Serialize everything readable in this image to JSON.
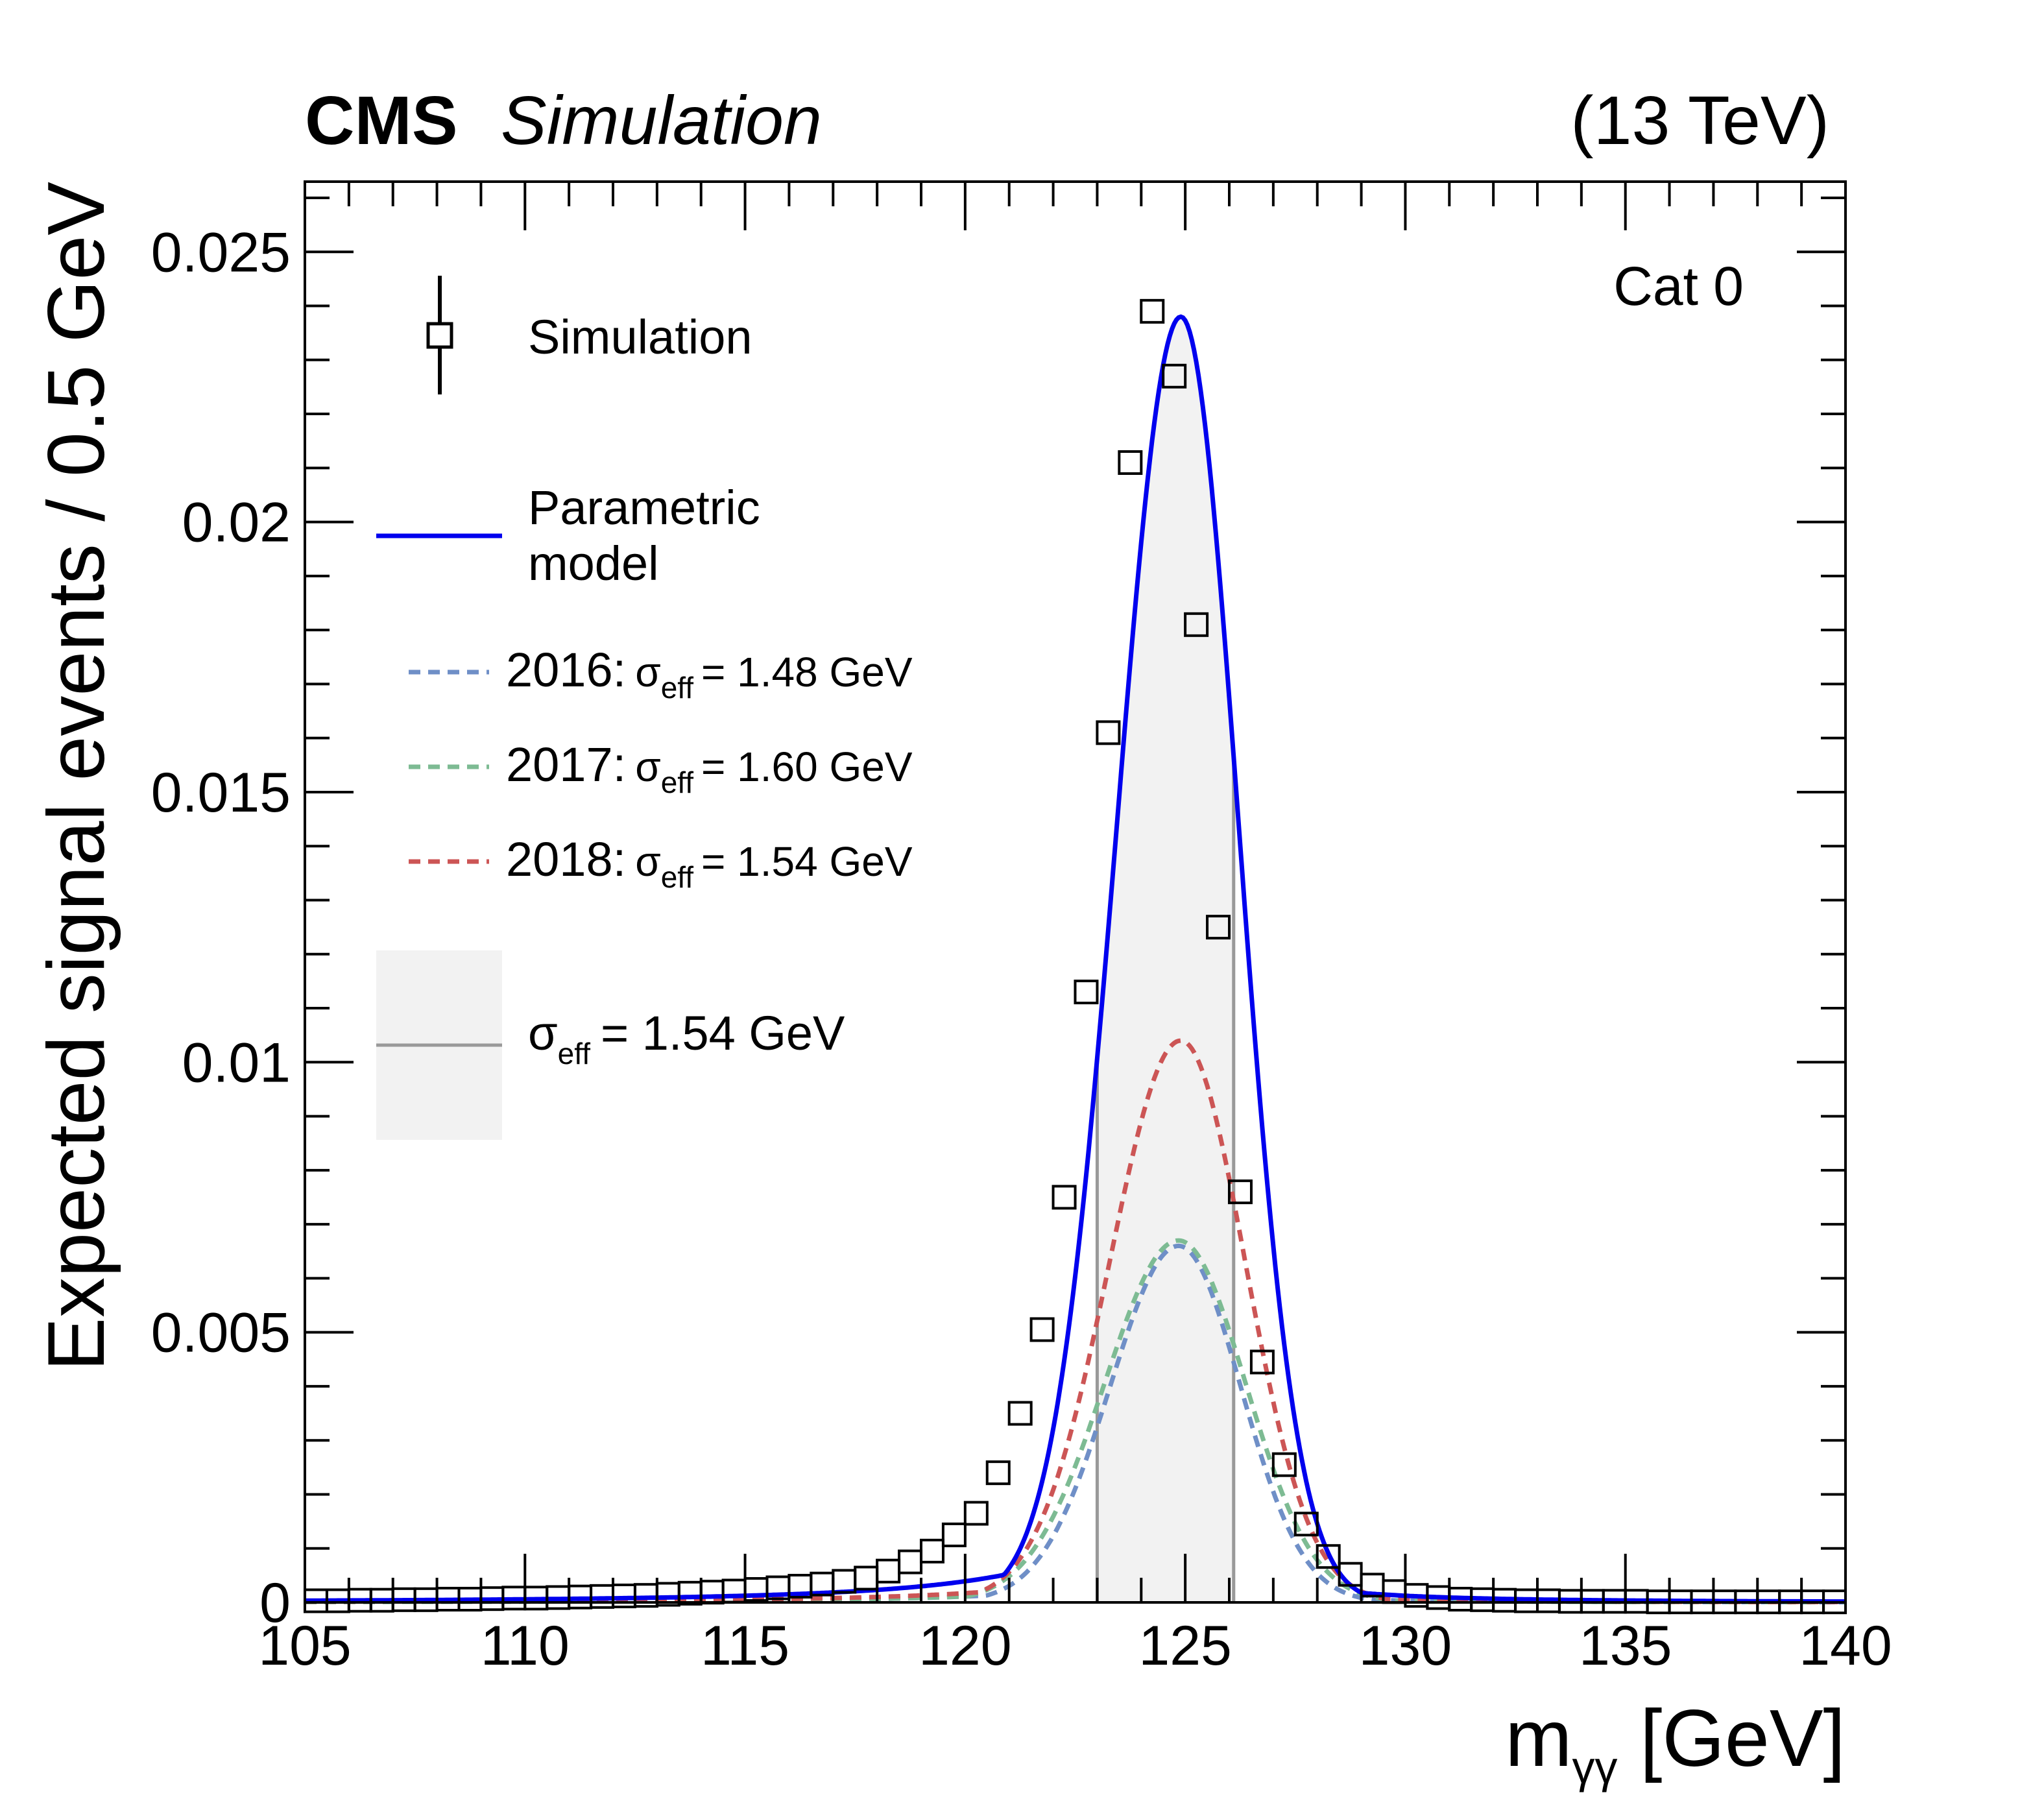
{
  "header": {
    "experiment": "CMS",
    "label": "Simulation",
    "energy": "(13 TeV)"
  },
  "category_label": "Cat 0",
  "colors": {
    "model": "#0000ee",
    "y2016": "#6f8fc7",
    "y2017": "#7dbb93",
    "y2018": "#cc5555",
    "band": "#f2f2f2",
    "band_edge": "#999999"
  },
  "legend": {
    "simulation": "Simulation",
    "model_line1": "Parametric",
    "model_line2": "model",
    "y2016_year": "2016:",
    "y2017_year": "2017:",
    "y2018_year": "2018:",
    "sigma_symbol": "σ",
    "sigma_sub": "eff",
    "y2016_value": "= 1.48 GeV",
    "y2017_value": "= 1.60 GeV",
    "y2018_value": "= 1.54 GeV",
    "total_value": "= 1.54 GeV"
  },
  "chart_data": {
    "type": "line",
    "title": "CMS Simulation (13 TeV)",
    "xlabel_main": "m",
    "xlabel_sub": "γγ",
    "xlabel_unit": "[GeV]",
    "ylabel": "Expected signal events / 0.5 GeV",
    "xlim": [
      105,
      140
    ],
    "ylim": [
      0,
      0.0263
    ],
    "x_ticks": [
      105,
      110,
      115,
      120,
      125,
      130,
      135,
      140
    ],
    "x_tick_labels": [
      "105",
      "110",
      "115",
      "120",
      "125",
      "130",
      "135",
      "140"
    ],
    "y_ticks": [
      0,
      0.005,
      0.01,
      0.015,
      0.02,
      0.025
    ],
    "y_tick_labels": [
      "0",
      "0.005",
      "0.01",
      "0.015",
      "0.02",
      "0.025"
    ],
    "sigma_eff_band": [
      123.0,
      126.1
    ],
    "simulation_points": {
      "x": [
        105.25,
        105.75,
        106.25,
        106.75,
        107.25,
        107.75,
        108.25,
        108.75,
        109.25,
        109.75,
        110.25,
        110.75,
        111.25,
        111.75,
        112.25,
        112.75,
        113.25,
        113.75,
        114.25,
        114.75,
        115.25,
        115.75,
        116.25,
        116.75,
        117.25,
        117.75,
        118.25,
        118.75,
        119.25,
        119.75,
        120.25,
        120.75,
        121.25,
        121.75,
        122.25,
        122.75,
        123.25,
        123.75,
        124.25,
        124.75,
        125.25,
        125.75,
        126.25,
        126.75,
        127.25,
        127.75,
        128.25,
        128.75,
        129.25,
        129.75,
        130.25,
        130.75,
        131.25,
        131.75,
        132.25,
        132.75,
        133.25,
        133.75,
        134.25,
        134.75,
        135.25,
        135.75,
        136.25,
        136.75,
        137.25,
        137.75,
        138.25,
        138.75,
        139.25,
        139.75
      ],
      "y": [
        3e-05,
        3e-05,
        4e-05,
        4e-05,
        5e-05,
        5e-05,
        6e-05,
        6e-05,
        7e-05,
        8e-05,
        8e-05,
        9e-05,
        0.0001,
        0.00011,
        0.00012,
        0.00013,
        0.00015,
        0.00017,
        0.00019,
        0.00021,
        0.00024,
        0.00027,
        0.0003,
        0.00034,
        0.00039,
        0.00045,
        0.00058,
        0.00075,
        0.00095,
        0.00125,
        0.00165,
        0.0024,
        0.0035,
        0.00505,
        0.0075,
        0.0113,
        0.0161,
        0.0211,
        0.0239,
        0.0227,
        0.0181,
        0.0125,
        0.0076,
        0.00445,
        0.00255,
        0.00145,
        0.00085,
        0.00052,
        0.00032,
        0.0002,
        0.00013,
        9e-05,
        6e-05,
        5e-05,
        4e-05,
        3e-05,
        3e-05,
        2e-05,
        2e-05,
        2e-05,
        2e-05,
        1e-05,
        1e-05,
        1e-05,
        1e-05,
        1e-05,
        1e-05,
        1e-05,
        1e-05,
        1e-05
      ]
    },
    "series": [
      {
        "name": "Parametric model",
        "peak": 0.0238,
        "mean": 124.9,
        "sigma_core": 1.38
      },
      {
        "name": "2016",
        "peak": 0.0066,
        "mean": 124.85,
        "sigma_core": 1.48
      },
      {
        "name": "2017",
        "peak": 0.0067,
        "mean": 124.85,
        "sigma_core": 1.6
      },
      {
        "name": "2018",
        "peak": 0.0104,
        "mean": 124.9,
        "sigma_core": 1.54
      }
    ]
  }
}
